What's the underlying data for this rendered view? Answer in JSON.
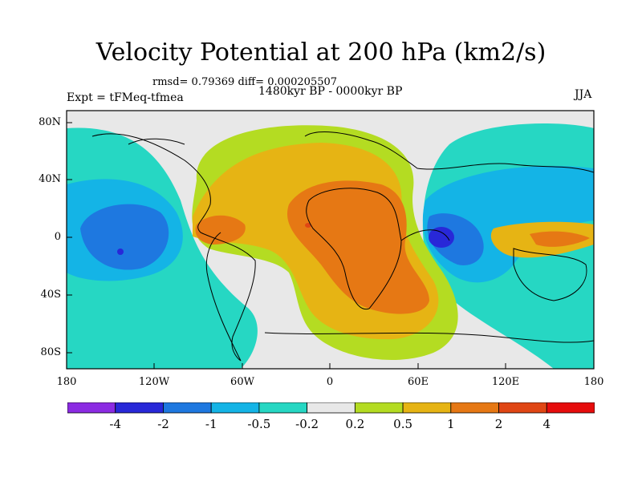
{
  "title": "Velocity Potential at 200 hPa (km2/s)",
  "stats": "rmsd= 0.79369 diff= 0.000205507",
  "period": "1480kyr BP - 0000kyr BP",
  "experiment": "Expt = tFMeq-tfmea",
  "season": "JJA",
  "lat_ticks": [
    "80N",
    "40N",
    "0",
    "40S",
    "80S"
  ],
  "lon_ticks": [
    "180",
    "120W",
    "60W",
    "0",
    "60E",
    "120E",
    "180"
  ],
  "colorbar": {
    "colors": [
      "#8b2be2",
      "#2828d8",
      "#1e78e0",
      "#14b4e6",
      "#26d7c3",
      "#e8e8e8",
      "#b4dc22",
      "#e6b414",
      "#e67814",
      "#e04614",
      "#e60c0c"
    ],
    "labels": [
      "-4",
      "-2",
      "-1",
      "-0.5",
      "-0.2",
      "0.2",
      "0.5",
      "1",
      "2",
      "4"
    ]
  },
  "map_data": {
    "type": "filled-contour-map",
    "projection": "equirectangular",
    "lon_range": [
      -180,
      180
    ],
    "lat_range": [
      -90,
      90
    ]
  }
}
